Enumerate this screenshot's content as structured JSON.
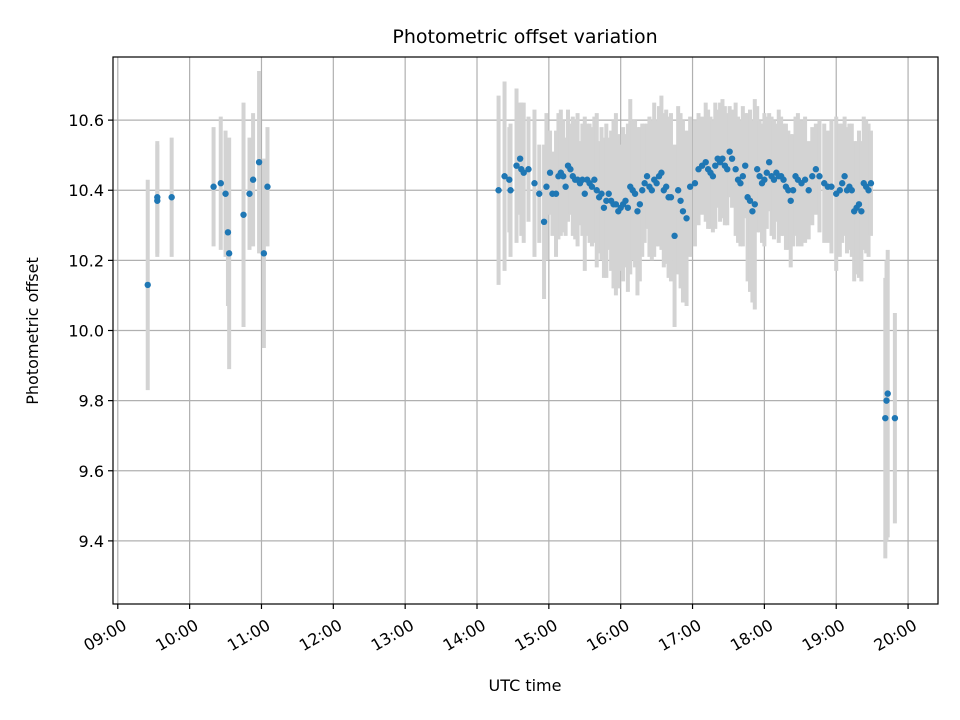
{
  "chart_data": {
    "type": "scatter",
    "title": "Photometric offset variation",
    "xlabel": "UTC time",
    "ylabel": "Photometric offset",
    "xlim": [
      "08:56",
      "20:25"
    ],
    "ylim": [
      9.22,
      10.78
    ],
    "x_ticks": [
      "09:00",
      "10:00",
      "11:00",
      "12:00",
      "13:00",
      "14:00",
      "15:00",
      "16:00",
      "17:00",
      "18:00",
      "19:00",
      "20:00"
    ],
    "y_ticks": [
      "9.4",
      "9.6",
      "9.8",
      "10.0",
      "10.2",
      "10.4",
      "10.6"
    ],
    "grid": true,
    "point_color": "#1f77b4",
    "errorbar_color": "#d3d3d3",
    "series": [
      {
        "x": [
          "09:25",
          "09:33",
          "09:33",
          "09:45",
          "10:20",
          "10:26",
          "10:30",
          "10:32",
          "10:33",
          "10:45",
          "10:50",
          "10:53",
          "10:58",
          "11:02",
          "11:05",
          "14:18",
          "14:23",
          "14:27",
          "14:28",
          "14:33",
          "14:36",
          "14:37",
          "14:39",
          "14:43",
          "14:48",
          "14:52",
          "14:56",
          "14:58",
          "15:01",
          "15:03",
          "15:06",
          "15:08",
          "15:10",
          "15:12",
          "15:14",
          "15:16",
          "15:18",
          "15:20",
          "15:22",
          "15:24",
          "15:26",
          "15:28",
          "15:30",
          "15:32",
          "15:34",
          "15:36",
          "15:38",
          "15:40",
          "15:42",
          "15:44",
          "15:46",
          "15:48",
          "15:50",
          "15:52",
          "15:54",
          "15:56",
          "15:58",
          "16:00",
          "16:02",
          "16:04",
          "16:06",
          "16:08",
          "16:10",
          "16:12",
          "16:14",
          "16:16",
          "16:18",
          "16:20",
          "16:22",
          "16:24",
          "16:26",
          "16:28",
          "16:30",
          "16:32",
          "16:34",
          "16:36",
          "16:38",
          "16:40",
          "16:42",
          "16:45",
          "16:48",
          "16:50",
          "16:52",
          "16:55",
          "16:58",
          "17:02",
          "17:05",
          "17:08",
          "17:11",
          "17:13",
          "17:15",
          "17:17",
          "17:19",
          "17:21",
          "17:23",
          "17:25",
          "17:27",
          "17:29",
          "17:31",
          "17:33",
          "17:36",
          "17:38",
          "17:40",
          "17:42",
          "17:44",
          "17:46",
          "17:48",
          "17:50",
          "17:52",
          "17:54",
          "17:56",
          "17:58",
          "18:00",
          "18:02",
          "18:04",
          "18:06",
          "18:08",
          "18:10",
          "18:12",
          "18:14",
          "18:16",
          "18:18",
          "18:20",
          "18:22",
          "18:24",
          "18:26",
          "18:28",
          "18:31",
          "18:34",
          "18:37",
          "18:40",
          "18:43",
          "18:46",
          "18:50",
          "18:53",
          "18:56",
          "19:00",
          "19:03",
          "19:05",
          "19:07",
          "19:09",
          "19:11",
          "19:13",
          "19:15",
          "19:17",
          "19:19",
          "19:21",
          "19:23",
          "19:25",
          "19:27",
          "19:29",
          "19:41",
          "19:42",
          "19:43",
          "19:49"
        ],
        "y": [
          10.13,
          10.37,
          10.38,
          10.38,
          10.41,
          10.42,
          10.39,
          10.28,
          10.22,
          10.33,
          10.39,
          10.43,
          10.48,
          10.22,
          10.41,
          10.4,
          10.44,
          10.43,
          10.4,
          10.47,
          10.49,
          10.46,
          10.45,
          10.46,
          10.42,
          10.39,
          10.31,
          10.41,
          10.45,
          10.39,
          10.39,
          10.44,
          10.45,
          10.44,
          10.41,
          10.47,
          10.46,
          10.44,
          10.43,
          10.43,
          10.42,
          10.43,
          10.39,
          10.43,
          10.42,
          10.41,
          10.43,
          10.4,
          10.38,
          10.39,
          10.35,
          10.37,
          10.39,
          10.37,
          10.36,
          10.36,
          10.34,
          10.35,
          10.36,
          10.37,
          10.35,
          10.41,
          10.4,
          10.39,
          10.34,
          10.36,
          10.4,
          10.42,
          10.44,
          10.41,
          10.4,
          10.43,
          10.42,
          10.44,
          10.45,
          10.4,
          10.41,
          10.38,
          10.38,
          10.27,
          10.4,
          10.37,
          10.34,
          10.32,
          10.41,
          10.42,
          10.46,
          10.47,
          10.48,
          10.46,
          10.45,
          10.44,
          10.47,
          10.49,
          10.48,
          10.49,
          10.47,
          10.46,
          10.51,
          10.49,
          10.46,
          10.43,
          10.42,
          10.44,
          10.47,
          10.38,
          10.37,
          10.34,
          10.36,
          10.46,
          10.44,
          10.42,
          10.43,
          10.45,
          10.48,
          10.44,
          10.43,
          10.45,
          10.44,
          10.44,
          10.43,
          10.41,
          10.4,
          10.37,
          10.4,
          10.44,
          10.43,
          10.42,
          10.43,
          10.4,
          10.44,
          10.46,
          10.44,
          10.42,
          10.41,
          10.41,
          10.39,
          10.4,
          10.42,
          10.44,
          10.4,
          10.41,
          10.4,
          10.34,
          10.35,
          10.36,
          10.34,
          10.42,
          10.41,
          10.4,
          10.42,
          9.75,
          9.8,
          9.82,
          9.75
        ],
        "yerr": [
          0.3,
          0.16,
          0.16,
          0.17,
          0.17,
          0.19,
          0.18,
          0.21,
          0.33,
          0.32,
          0.16,
          0.19,
          0.26,
          0.27,
          0.17,
          0.27,
          0.27,
          0.15,
          0.19,
          0.22,
          0.16,
          0.19,
          0.2,
          0.15,
          0.21,
          0.14,
          0.22,
          0.21,
          0.12,
          0.12,
          0.18,
          0.18,
          0.18,
          0.16,
          0.14,
          0.16,
          0.13,
          0.17,
          0.17,
          0.19,
          0.12,
          0.16,
          0.22,
          0.16,
          0.17,
          0.17,
          0.18,
          0.22,
          0.16,
          0.19,
          0.2,
          0.22,
          0.16,
          0.2,
          0.24,
          0.26,
          0.22,
          0.18,
          0.22,
          0.19,
          0.24,
          0.25,
          0.2,
          0.21,
          0.24,
          0.22,
          0.19,
          0.17,
          0.15,
          0.2,
          0.2,
          0.22,
          0.18,
          0.2,
          0.22,
          0.22,
          0.22,
          0.23,
          0.24,
          0.26,
          0.24,
          0.25,
          0.26,
          0.25,
          0.2,
          0.18,
          0.16,
          0.14,
          0.17,
          0.17,
          0.16,
          0.16,
          0.18,
          0.14,
          0.17,
          0.17,
          0.17,
          0.16,
          0.13,
          0.14,
          0.19,
          0.18,
          0.18,
          0.2,
          0.15,
          0.24,
          0.26,
          0.26,
          0.3,
          0.18,
          0.16,
          0.17,
          0.19,
          0.16,
          0.14,
          0.17,
          0.17,
          0.14,
          0.19,
          0.17,
          0.16,
          0.18,
          0.17,
          0.19,
          0.16,
          0.17,
          0.19,
          0.18,
          0.18,
          0.14,
          0.14,
          0.13,
          0.16,
          0.17,
          0.16,
          0.19,
          0.22,
          0.19,
          0.17,
          0.17,
          0.18,
          0.18,
          0.19,
          0.2,
          0.19,
          0.21,
          0.2,
          0.19,
          0.19,
          0.19,
          0.15,
          0.4,
          0.4,
          0.41,
          0.3
        ]
      }
    ]
  }
}
